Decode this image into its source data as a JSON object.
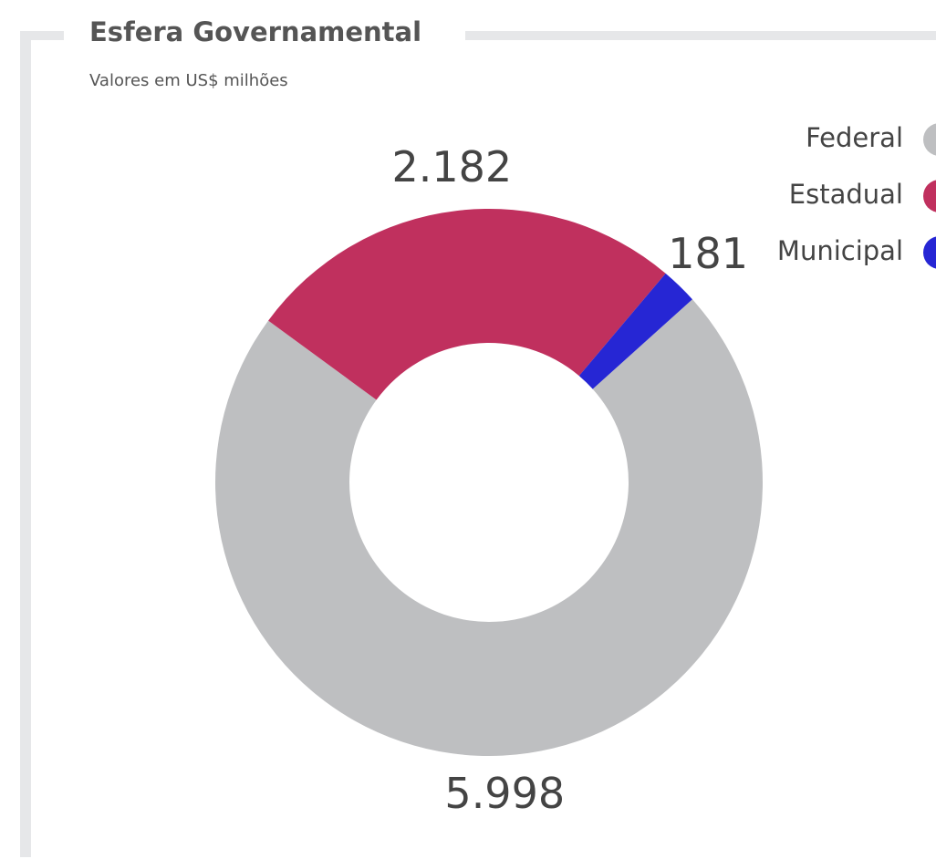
{
  "chart_data": {
    "type": "donut",
    "title": "Esfera Governamental",
    "subtitle": "Valores em US$ milhões",
    "categories": [
      "Federal",
      "Estadual",
      "Municipal"
    ],
    "values": [
      5998,
      2182,
      181
    ],
    "value_labels": [
      "5.998",
      "2.182",
      "181"
    ],
    "colors": [
      "#bebfc1",
      "#c0305e",
      "#2626d4"
    ],
    "legend": "top-right"
  }
}
